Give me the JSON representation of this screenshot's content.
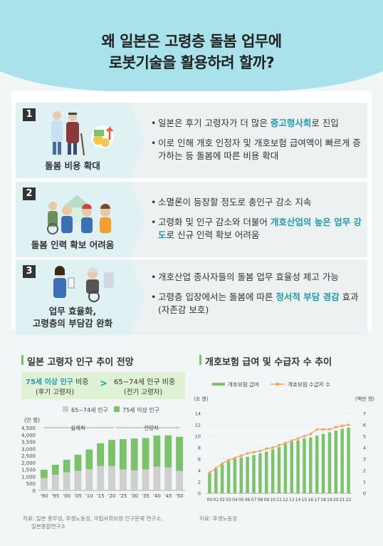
{
  "header": {
    "title_line1": "왜 일본은 고령층 돌봄 업무에",
    "title_line2": "로봇기술을 활용하려 할까?"
  },
  "sections": [
    {
      "number": "1",
      "label": "돌봄 비용 확대",
      "illustration": "elderly-couple-and-coins-icon",
      "bullets": [
        {
          "parts": [
            {
              "t": "일본은 후기 고령자가 더 많은 ",
              "hl": false
            },
            {
              "t": "중고령사회",
              "hl": true
            },
            {
              "t": "로 진입",
              "hl": false
            }
          ]
        },
        {
          "parts": [
            {
              "t": "이로 인해 개호 인정자 및 개호보험 급여액이 빠르게 증가하는 등 돌봄에 따른 비용 확대",
              "hl": false
            }
          ]
        }
      ]
    },
    {
      "number": "2",
      "label": "돌봄 인력 확보 어려움",
      "illustration": "caregivers-and-house-icon",
      "bullets": [
        {
          "parts": [
            {
              "t": "소멸론이 등장할 정도로 총인구 감소 지속",
              "hl": false
            }
          ]
        },
        {
          "parts": [
            {
              "t": "고령화 및 인구 감소와 더불어 ",
              "hl": false
            },
            {
              "t": "개호산업의 높은 업무 강도",
              "hl": true
            },
            {
              "t": "로 신규 인력 확보 어려움",
              "hl": false
            }
          ]
        }
      ]
    },
    {
      "number": "3",
      "label_line1": "업무 효율화,",
      "label_line2": "고령층의 부담감 완화",
      "illustration": "caregiver-and-wheelchair-icon",
      "bullets": [
        {
          "parts": [
            {
              "t": "개호산업 종사자들의 돌봄 업무 효율성 제고 가능",
              "hl": false
            }
          ]
        },
        {
          "parts": [
            {
              "t": "고령층 입장에서는 돌봄에 따른 ",
              "hl": false
            },
            {
              "t": "정서적 부담 경감",
              "hl": true
            },
            {
              "t": " 효과 (자존감 보호)",
              "hl": false
            }
          ]
        }
      ]
    }
  ],
  "chart_data": [
    {
      "type": "bar",
      "title": "일본 고령자 인구 추이 전망",
      "compare": {
        "left_line1": "75세 이상 인구",
        "left_line1_suffix": " 비중",
        "left_line2": "(후기 고령자)",
        "op": ">",
        "right_line1": "65~74세 인구 비중",
        "right_line2": "(전기 고령자)"
      },
      "unit": "(만 명)",
      "annotations": {
        "actual": "실제치",
        "forecast": "전망치"
      },
      "categories": [
        "'90",
        "'95",
        "'00",
        "'05",
        "'10",
        "'15",
        "'20",
        "'25",
        "'30",
        "'35",
        "'40",
        "'45",
        "'50"
      ],
      "series": [
        {
          "name": "65~74세 인구",
          "color": "#cfcfcf",
          "values": [
            880,
            1120,
            1300,
            1400,
            1520,
            1750,
            1750,
            1500,
            1430,
            1500,
            1700,
            1650,
            1400
          ]
        },
        {
          "name": "75세 이상 인구",
          "color": "#7cc16b",
          "values": [
            600,
            720,
            900,
            1160,
            1420,
            1630,
            1870,
            2180,
            2290,
            2260,
            2240,
            2300,
            2450
          ]
        }
      ],
      "yticks": [
        "0",
        "500",
        "1,000",
        "1,500",
        "2,000",
        "2,500",
        "3,000",
        "3,500",
        "4,000",
        "4,500"
      ],
      "ylim": [
        0,
        4500
      ],
      "source_line1": "자료: 일본 총무성, 후생노동성, 국립사회보장·인구문제 연구소,",
      "source_line2": "일본종합연구소"
    },
    {
      "type": "bar+line",
      "title": "개호보험 급여 및 수급자 수 추이",
      "left_unit": "(조 엔)",
      "right_unit": "(백만 명)",
      "categories": [
        "00",
        "01",
        "02",
        "03",
        "04",
        "05",
        "06",
        "07",
        "08",
        "09",
        "10",
        "11",
        "12",
        "13",
        "14",
        "15",
        "16",
        "17",
        "18",
        "19",
        "20",
        "21",
        "22"
      ],
      "series": [
        {
          "name": "개호보험 급여",
          "color": "#7cc16b",
          "axis": "left",
          "values": [
            3.6,
            4.3,
            5.0,
            5.6,
            6.0,
            6.3,
            6.4,
            6.7,
            7.0,
            7.3,
            7.7,
            8.1,
            8.6,
            9.0,
            9.3,
            9.6,
            9.8,
            10.1,
            10.4,
            10.7,
            11.0,
            11.3,
            11.5
          ]
        },
        {
          "name": "개호보험 수급자 수",
          "color": "#f2a25a",
          "axis": "right",
          "values": [
            1.8,
            2.2,
            2.6,
            2.9,
            3.1,
            3.3,
            3.5,
            3.6,
            3.7,
            3.9,
            4.0,
            4.2,
            4.4,
            4.6,
            4.8,
            5.0,
            5.2,
            5.6,
            5.6,
            5.6,
            5.8,
            5.9,
            6.0
          ]
        }
      ],
      "left_ticks": [
        "0",
        "2",
        "4",
        "6",
        "8",
        "10",
        "12",
        "14"
      ],
      "right_ticks": [
        "0",
        "1",
        "2",
        "3",
        "4",
        "5",
        "6",
        "7"
      ],
      "left_ylim": [
        0,
        14
      ],
      "right_ylim": [
        0,
        7
      ],
      "source": "자료: 후생노동성"
    }
  ]
}
